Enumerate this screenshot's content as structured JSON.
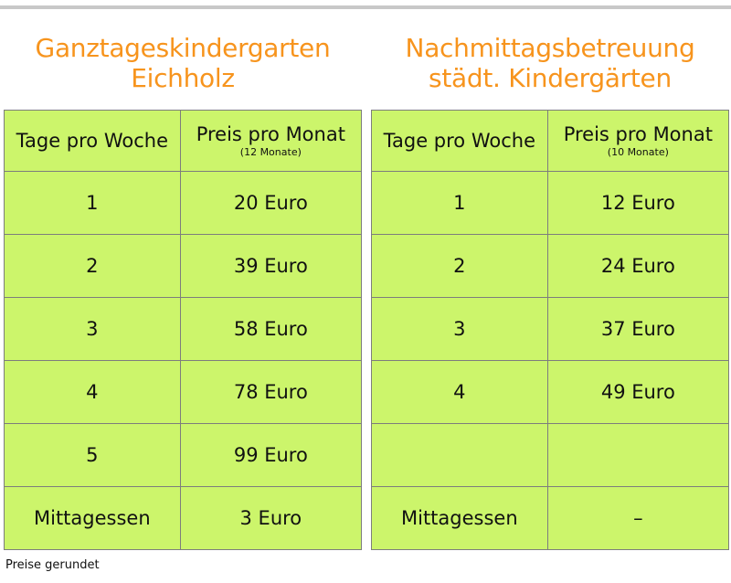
{
  "left": {
    "title_line1": "Ganztageskindergarten",
    "title_line2": "Eichholz",
    "header_col1": "Tage pro Woche",
    "header_col2": "Preis pro Monat",
    "header_col2_sub": "(12 Monate)",
    "rows": [
      {
        "days": "1",
        "price": "20 Euro"
      },
      {
        "days": "2",
        "price": "39 Euro"
      },
      {
        "days": "3",
        "price": "58 Euro"
      },
      {
        "days": "4",
        "price": "78 Euro"
      },
      {
        "days": "5",
        "price": "99 Euro"
      },
      {
        "days": "Mittagessen",
        "price": "3 Euro"
      }
    ]
  },
  "right": {
    "title_line1": "Nachmittagsbetreuung",
    "title_line2": "städt. Kindergärten",
    "header_col1": "Tage pro Woche",
    "header_col2": "Preis pro Monat",
    "header_col2_sub": "(10 Monate)",
    "rows": [
      {
        "days": "1",
        "price": "12 Euro"
      },
      {
        "days": "2",
        "price": "24 Euro"
      },
      {
        "days": "3",
        "price": "37 Euro"
      },
      {
        "days": "4",
        "price": "49 Euro"
      },
      {
        "days": "",
        "price": ""
      },
      {
        "days": "Mittagessen",
        "price": "–"
      }
    ]
  },
  "footnote": "Preise gerundet",
  "colors": {
    "title": "#f7941d",
    "table_fill": "#ccf56b",
    "border": "#7d7d7d",
    "top_rule": "#c8c8c8"
  }
}
